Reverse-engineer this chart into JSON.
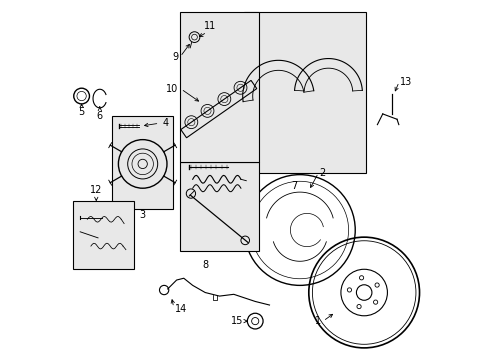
{
  "background_color": "#ffffff",
  "line_color": "#000000",
  "fig_width": 4.89,
  "fig_height": 3.6,
  "dpi": 100,
  "box_fill": "#e8e8e8",
  "boxes": {
    "hub": [
      0.13,
      0.42,
      0.3,
      0.68
    ],
    "cylinder": [
      0.32,
      0.55,
      0.54,
      0.97
    ],
    "shoes": [
      0.5,
      0.52,
      0.84,
      0.97
    ],
    "springs": [
      0.32,
      0.3,
      0.54,
      0.55
    ],
    "clips": [
      0.02,
      0.25,
      0.19,
      0.44
    ]
  },
  "labels": {
    "1": [
      0.73,
      0.11,
      "right"
    ],
    "2": [
      0.71,
      0.52,
      "right"
    ],
    "3": [
      0.215,
      0.4,
      "center"
    ],
    "4": [
      0.265,
      0.66,
      "left"
    ],
    "5": [
      0.044,
      0.595,
      "center"
    ],
    "6": [
      0.095,
      0.595,
      "center"
    ],
    "7": [
      0.64,
      0.5,
      "center"
    ],
    "8": [
      0.39,
      0.28,
      "center"
    ],
    "9": [
      0.315,
      0.83,
      "right"
    ],
    "10": [
      0.315,
      0.73,
      "right"
    ],
    "11": [
      0.4,
      0.9,
      "center"
    ],
    "12": [
      0.085,
      0.455,
      "center"
    ],
    "13": [
      0.925,
      0.78,
      "left"
    ],
    "14": [
      0.285,
      0.145,
      "left"
    ],
    "15": [
      0.535,
      0.105,
      "right"
    ]
  }
}
